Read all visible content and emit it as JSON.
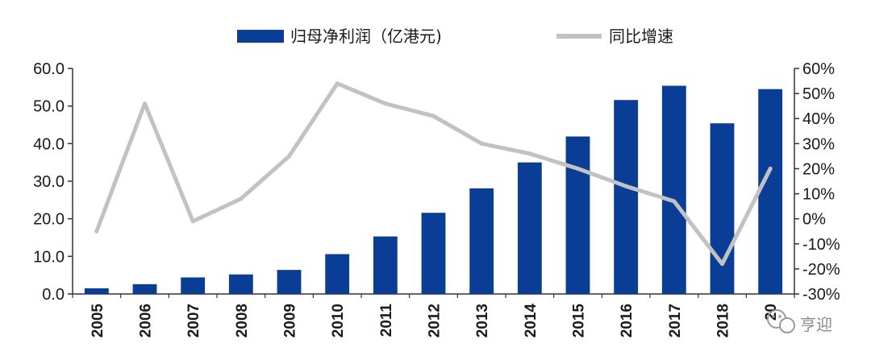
{
  "chart_data": {
    "type": "bar",
    "categories": [
      "2005",
      "2006",
      "2007",
      "2008",
      "2009",
      "2010",
      "2011",
      "2012",
      "2013",
      "2014",
      "2015",
      "2016",
      "2017",
      "2018",
      "20"
    ],
    "series": [
      {
        "name": "归母净利润（亿港元)",
        "type": "bar",
        "axis": "left",
        "color": "#0a3d96",
        "values": [
          1.5,
          2.6,
          4.4,
          5.2,
          6.4,
          10.6,
          15.3,
          21.6,
          28.1,
          35.0,
          41.9,
          51.6,
          55.4,
          45.4,
          54.5
        ]
      },
      {
        "name": "同比增速",
        "type": "line",
        "axis": "right",
        "unit": "%",
        "color": "#c2c2c2",
        "values": [
          -5,
          46,
          -1,
          8,
          25,
          54,
          46,
          41,
          30,
          26,
          20,
          13,
          7,
          -18,
          20
        ]
      }
    ],
    "y_left": {
      "ticks": [
        "60.0",
        "50.0",
        "40.0",
        "30.0",
        "20.0",
        "10.0",
        "0.0"
      ],
      "range": [
        0,
        60
      ]
    },
    "y_right": {
      "ticks": [
        "60%",
        "50%",
        "40%",
        "30%",
        "20%",
        "10%",
        "0%",
        "-10%",
        "-20%",
        "-30%"
      ],
      "range": [
        -30,
        60
      ]
    },
    "legend_position": "top-center",
    "grid": false
  },
  "watermark": {
    "icon": "wechat-icon",
    "text": "亨迎"
  }
}
